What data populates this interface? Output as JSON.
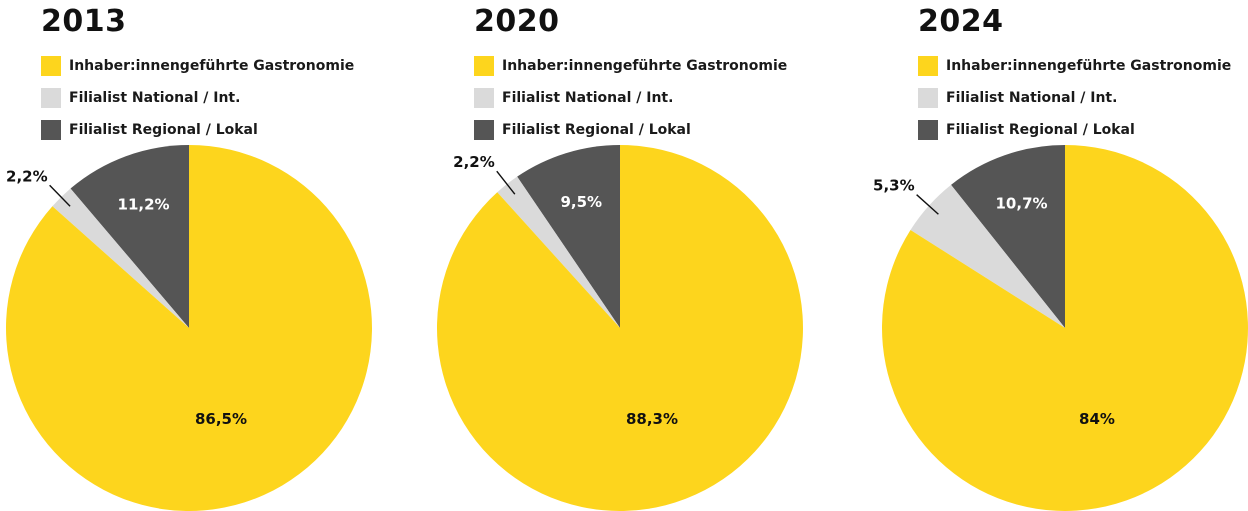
{
  "chart_data": [
    {
      "type": "pie",
      "title": "2013",
      "legend": [
        {
          "label": "Inhaber:innengeführte Gastronomie",
          "color": "#FDD51D"
        },
        {
          "label": "Filialist National / Int.",
          "color": "#DADADA"
        },
        {
          "label": "Filialist Regional / Lokal",
          "color": "#555555"
        }
      ],
      "slices": [
        {
          "label": "Filialist Regional / Lokal",
          "value": 11.2,
          "value_label": "11,2%",
          "color": "#555555"
        },
        {
          "label": "Filialist National / Int.",
          "value": 2.2,
          "value_label": "2,2%",
          "color": "#DADADA"
        },
        {
          "label": "Inhaber:innengeführte Gastronomie",
          "value": 86.5,
          "value_label": "86,5%",
          "color": "#FDD51D"
        }
      ]
    },
    {
      "type": "pie",
      "title": "2020",
      "legend": [
        {
          "label": "Inhaber:innengeführte Gastronomie",
          "color": "#FDD51D"
        },
        {
          "label": "Filialist National / Int.",
          "color": "#DADADA"
        },
        {
          "label": "Filialist Regional / Lokal",
          "color": "#555555"
        }
      ],
      "slices": [
        {
          "label": "Filialist Regional / Lokal",
          "value": 9.5,
          "value_label": "9,5%",
          "color": "#555555"
        },
        {
          "label": "Filialist National / Int.",
          "value": 2.2,
          "value_label": "2,2%",
          "color": "#DADADA"
        },
        {
          "label": "Inhaber:innengeführte Gastronomie",
          "value": 88.3,
          "value_label": "88,3%",
          "color": "#FDD51D"
        }
      ]
    },
    {
      "type": "pie",
      "title": "2024",
      "legend": [
        {
          "label": "Inhaber:innengeführte Gastronomie",
          "color": "#FDD51D"
        },
        {
          "label": "Filialist National / Int.",
          "color": "#DADADA"
        },
        {
          "label": "Filialist Regional / Lokal",
          "color": "#555555"
        }
      ],
      "slices": [
        {
          "label": "Filialist Regional / Lokal",
          "value": 10.7,
          "value_label": "10,7%",
          "color": "#555555"
        },
        {
          "label": "Filialist National / Int.",
          "value": 5.3,
          "value_label": "5,3%",
          "color": "#DADADA"
        },
        {
          "label": "Inhaber:innengeführte Gastronomie",
          "value": 84,
          "value_label": "84%",
          "color": "#FDD51D"
        }
      ]
    }
  ]
}
